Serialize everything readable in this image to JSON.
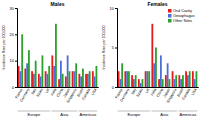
{
  "chart_data": [
    {
      "type": "bar",
      "title": "Males",
      "y_label": "Incidence Rate per 100,000",
      "categories": [
        "France",
        "Germany",
        "Italy",
        "Spain",
        "UK",
        "India",
        "China",
        "Japan",
        "Singapore",
        "Brazil",
        "Canada",
        "USA"
      ],
      "category_groups": [
        "Europe",
        "Europe",
        "Europe",
        "Europe",
        "Europe",
        "Asia",
        "Asia",
        "Asia",
        "Asia",
        "Americas",
        "Americas",
        "Americas"
      ],
      "series": [
        {
          "color": "#e41a1c",
          "values": [
            8,
            7,
            6,
            5,
            6,
            12,
            3,
            4,
            6,
            5,
            5,
            6
          ]
        },
        {
          "color": "#4a6fd6",
          "values": [
            6,
            9,
            5,
            4,
            5,
            8,
            10,
            12,
            6,
            4,
            5,
            4
          ]
        },
        {
          "color": "#2ca02c",
          "values": [
            20,
            14,
            10,
            12,
            8,
            24,
            5,
            6,
            9,
            7,
            6,
            8
          ]
        }
      ],
      "ylim": [
        0,
        30
      ],
      "yticks": [
        0,
        10,
        20,
        30
      ]
    },
    {
      "type": "bar",
      "title": "Females",
      "y_label": "Incidence Rate per 100,000",
      "categories": [
        "France",
        "Germany",
        "Italy",
        "Spain",
        "UK",
        "India",
        "China",
        "Japan",
        "Singapore",
        "Brazil",
        "Canada",
        "USA"
      ],
      "category_groups": [
        "Europe",
        "Europe",
        "Europe",
        "Europe",
        "Europe",
        "Asia",
        "Asia",
        "Asia",
        "Asia",
        "Americas",
        "Americas",
        "Americas"
      ],
      "series": [
        {
          "name": "Oral Cavity",
          "color": "#e41a1c",
          "values": [
            2,
            2,
            1.5,
            1,
            2,
            8,
            1,
            1.5,
            2,
            1.5,
            2,
            2
          ]
        },
        {
          "name": "Oesophagus",
          "color": "#4a6fd6",
          "values": [
            1,
            2,
            1,
            0.5,
            2,
            3,
            4,
            3,
            1,
            1,
            1.5,
            1
          ]
        },
        {
          "name": "Other Sites",
          "color": "#2ca02c",
          "values": [
            3,
            2,
            1.5,
            1,
            2,
            5,
            1,
            1,
            1.5,
            1.5,
            2,
            2
          ]
        }
      ],
      "ylim": [
        0,
        10
      ],
      "yticks": [
        0,
        5,
        10
      ],
      "legend": "top-right"
    }
  ]
}
